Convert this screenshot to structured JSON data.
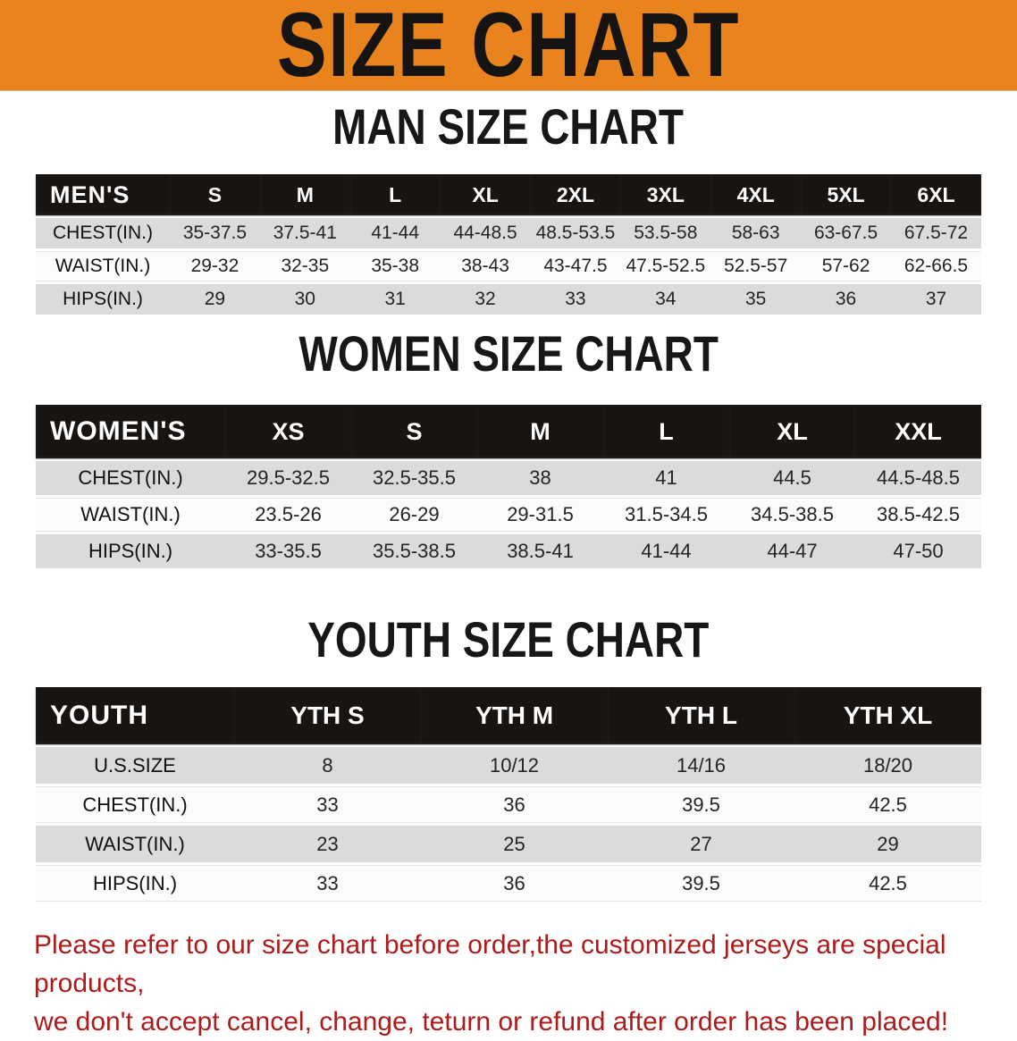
{
  "banner": {
    "title": "SIZE CHART",
    "bg_color": "#E8831E",
    "title_color": "#161412"
  },
  "sections": {
    "men": {
      "heading": "MAN SIZE CHART",
      "table": {
        "corner_label": "MEN'S",
        "columns": [
          "S",
          "M",
          "L",
          "XL",
          "2XL",
          "3XL",
          "4XL",
          "5XL",
          "6XL"
        ],
        "rows": [
          {
            "label": "CHEST(IN.)",
            "values": [
              "35-37.5",
              "37.5-41",
              "41-44",
              "44-48.5",
              "48.5-53.5",
              "53.5-58",
              "58-63",
              "63-67.5",
              "67.5-72"
            ]
          },
          {
            "label": "WAIST(IN.)",
            "values": [
              "29-32",
              "32-35",
              "35-38",
              "38-43",
              "43-47.5",
              "47.5-52.5",
              "52.5-57",
              "57-62",
              "62-66.5"
            ]
          },
          {
            "label": "HIPS(IN.)",
            "values": [
              "29",
              "30",
              "31",
              "32",
              "33",
              "34",
              "35",
              "36",
              "37"
            ]
          }
        ]
      }
    },
    "women": {
      "heading": "WOMEN SIZE CHART",
      "table": {
        "corner_label": "WOMEN'S",
        "columns": [
          "XS",
          "S",
          "M",
          "L",
          "XL",
          "XXL"
        ],
        "rows": [
          {
            "label": "CHEST(IN.)",
            "values": [
              "29.5-32.5",
              "32.5-35.5",
              "38",
              "41",
              "44.5",
              "44.5-48.5"
            ]
          },
          {
            "label": "WAIST(IN.)",
            "values": [
              "23.5-26",
              "26-29",
              "29-31.5",
              "31.5-34.5",
              "34.5-38.5",
              "38.5-42.5"
            ]
          },
          {
            "label": "HIPS(IN.)",
            "values": [
              "33-35.5",
              "35.5-38.5",
              "38.5-41",
              "41-44",
              "44-47",
              "47-50"
            ]
          }
        ]
      }
    },
    "youth": {
      "heading": "YOUTH SIZE CHART",
      "table": {
        "corner_label": "YOUTH",
        "columns": [
          "YTH S",
          "YTH M",
          "YTH L",
          "YTH XL"
        ],
        "rows": [
          {
            "label": "U.S.SIZE",
            "values": [
              "8",
              "10/12",
              "14/16",
              "18/20"
            ]
          },
          {
            "label": "CHEST(IN.)",
            "values": [
              "33",
              "36",
              "39.5",
              "42.5"
            ]
          },
          {
            "label": "WAIST(IN.)",
            "values": [
              "23",
              "25",
              "27",
              "29"
            ]
          },
          {
            "label": "HIPS(IN.)",
            "values": [
              "33",
              "36",
              "39.5",
              "42.5"
            ]
          }
        ]
      }
    }
  },
  "footer": {
    "line1": "Please refer to our size chart before order,the customized jerseys are special products,",
    "line2": "we don't accept cancel, change, teturn or refund after order has been placed!",
    "text_color": "#AC1C1C"
  }
}
